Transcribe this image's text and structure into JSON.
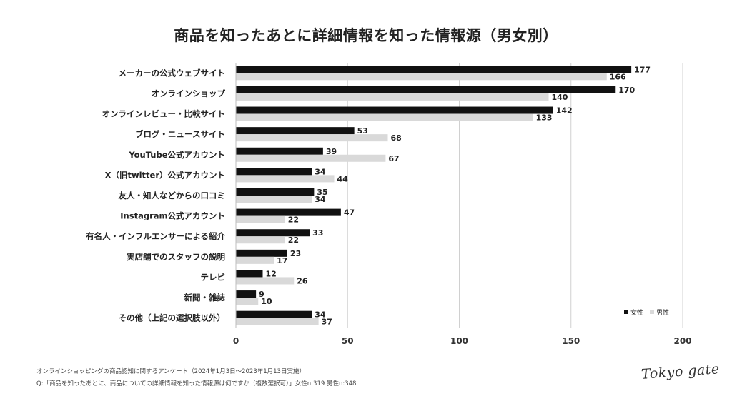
{
  "chart_data": {
    "type": "bar",
    "orientation": "horizontal",
    "title": "商品を知ったあとに詳細情報を知った情報源（男女別）",
    "categories": [
      "メーカーの公式ウェブサイト",
      "オンラインショップ",
      "オンラインレビュー・比較サイト",
      "ブログ・ニュースサイト",
      "YouTube公式アカウント",
      "X（旧twitter）公式アカウント",
      "友人・知人などからの口コミ",
      "Instagram公式アカウント",
      "有名人・インフルエンサーによる紹介",
      "実店舗でのスタッフの説明",
      "テレビ",
      "新聞・雑誌",
      "その他（上記の選択肢以外）"
    ],
    "series": [
      {
        "name": "女性",
        "color": "#111111",
        "values": [
          177,
          170,
          142,
          53,
          39,
          34,
          35,
          47,
          33,
          23,
          12,
          9,
          34
        ]
      },
      {
        "name": "男性",
        "color": "#d9d9d9",
        "values": [
          166,
          140,
          133,
          68,
          67,
          44,
          34,
          22,
          22,
          17,
          26,
          10,
          37
        ]
      }
    ],
    "xlim": [
      0,
      200
    ],
    "xticks": [
      0,
      50,
      100,
      150,
      200
    ],
    "grid": true,
    "legend": "bottom-right"
  },
  "footer": {
    "note1": "オンラインショッピングの商品認知に関するアンケート（2024年1月3日〜2023年1月13日実施）",
    "note2": "Q:「商品を知ったあとに、商品についての詳細情報を知った情報源は何ですか（複数選択可）」女性n:319 男性n:348"
  },
  "logo_text": "Tokyo gate"
}
